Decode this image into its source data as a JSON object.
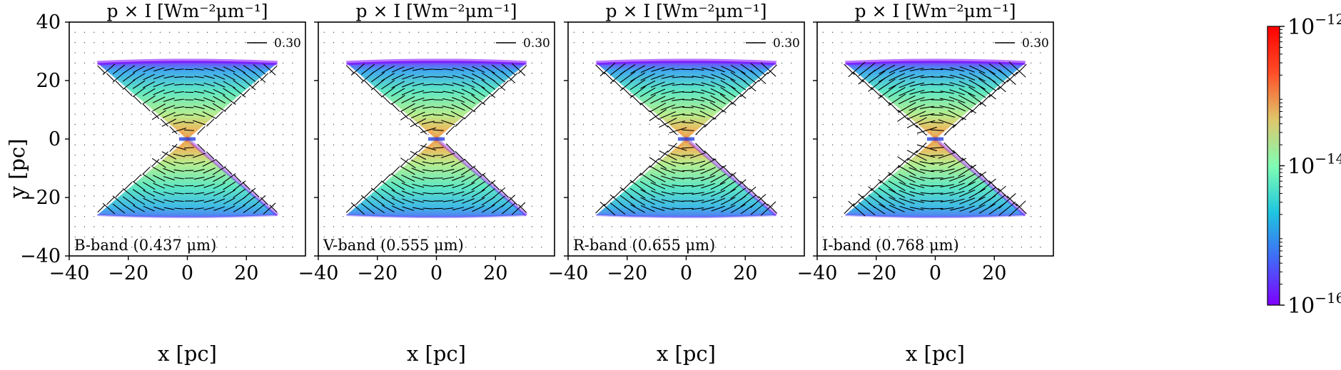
{
  "chart_data": {
    "type": "heatmap",
    "colormap": "rainbow",
    "colormap_stops": [
      "#7f00ff",
      "#4169f7",
      "#1ec6df",
      "#80feb3",
      "#e0c66a",
      "#ff4d27",
      "#ff0000"
    ],
    "colorbar": {
      "scale": "log",
      "range": [
        1e-16,
        1e-12
      ],
      "ticks": [
        {
          "base": "10",
          "exp": "−12"
        },
        {
          "base": "10",
          "exp": "−14"
        },
        {
          "base": "10",
          "exp": "−16"
        }
      ]
    },
    "xlabel": "x [pc]",
    "ylabel": "y [pc]",
    "xlim": [
      -40,
      40
    ],
    "ylim": [
      -40,
      40
    ],
    "xticks": [
      -40,
      -20,
      0,
      20
    ],
    "yticks": [
      40,
      20,
      0,
      -20,
      -40
    ],
    "xtick_labels": [
      "−40",
      "−20",
      "0",
      "20"
    ],
    "ytick_labels": [
      "40",
      "20",
      "0",
      "−20",
      "−40"
    ],
    "legend_value": "0.30",
    "legend_placement": "top-right",
    "cone": {
      "half_width_at_tip": 30.5,
      "height": 26,
      "cap_height": 1.5
    },
    "panels": [
      {
        "title": "p × I [Wm⁻²μm⁻¹]",
        "band": "B-band (0.437 μm)",
        "wavelength_um": 0.437,
        "vector_scale": 1.0
      },
      {
        "title": "p × I [Wm⁻²μm⁻¹]",
        "band": "V-band (0.555 μm)",
        "wavelength_um": 0.555,
        "vector_scale": 1.1
      },
      {
        "title": "p × I [Wm⁻²μm⁻¹]",
        "band": "R-band (0.655 μm)",
        "wavelength_um": 0.655,
        "vector_scale": 1.25
      },
      {
        "title": "p × I [Wm⁻²μm⁻¹]",
        "band": "I-band (0.768 μm)",
        "wavelength_um": 0.768,
        "vector_scale": 1.4
      }
    ]
  }
}
